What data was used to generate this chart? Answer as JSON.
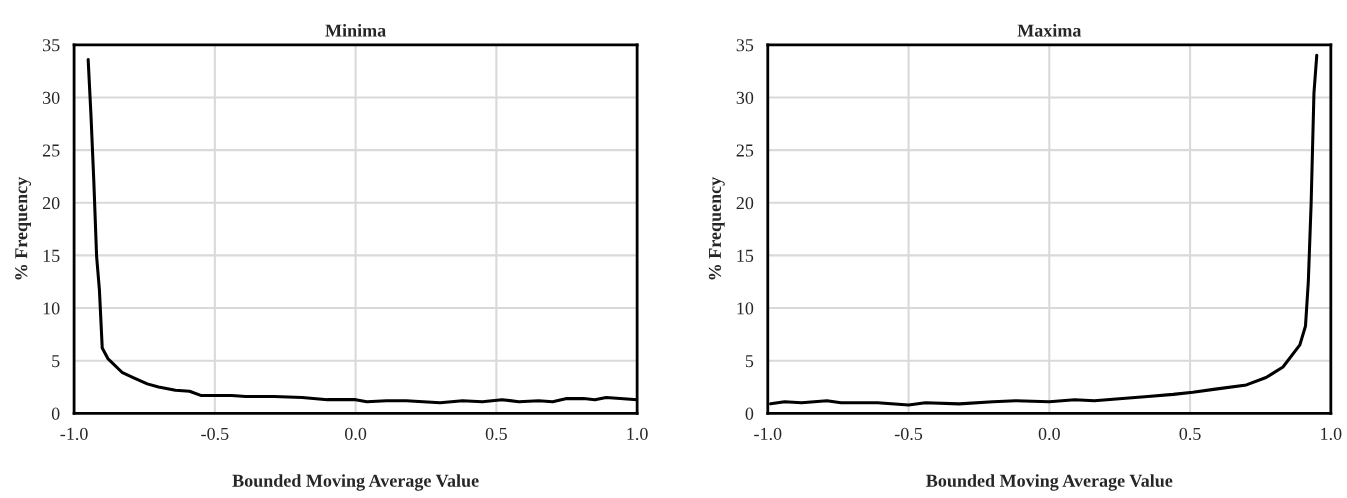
{
  "chart_data": [
    {
      "type": "line",
      "title": "Minima",
      "xlabel": "Bounded Moving Average Value",
      "ylabel": "% Frequency",
      "xlim": [
        -1.0,
        1.0
      ],
      "ylim": [
        0,
        35
      ],
      "xticks": [
        {
          "value": -1,
          "label": "-1.0"
        },
        {
          "value": -0.5,
          "label": "-0.5"
        },
        {
          "value": 0,
          "label": "0.0"
        },
        {
          "value": 0.5,
          "label": "0.5"
        },
        {
          "value": 1,
          "label": "1.0"
        }
      ],
      "yticks": [
        0,
        5,
        10,
        15,
        20,
        25,
        30,
        35
      ],
      "grid": true,
      "legend": false,
      "x": [
        -0.95,
        -0.94,
        -0.93,
        -0.92,
        -0.91,
        -0.9,
        -0.88,
        -0.83,
        -0.79,
        -0.74,
        -0.7,
        -0.64,
        -0.59,
        -0.55,
        -0.5,
        -0.44,
        -0.39,
        -0.29,
        -0.19,
        -0.1,
        0.0,
        0.04,
        0.11,
        0.18,
        0.3,
        0.38,
        0.45,
        0.52,
        0.58,
        0.65,
        0.7,
        0.75,
        0.81,
        0.85,
        0.89,
        0.94,
        1.0
      ],
      "series": [
        {
          "color": "#000000",
          "values": [
            33.6,
            28.3,
            22.1,
            14.9,
            11.7,
            6.2,
            5.2,
            3.9,
            3.4,
            2.8,
            2.5,
            2.2,
            2.1,
            1.7,
            1.7,
            1.7,
            1.6,
            1.6,
            1.5,
            1.3,
            1.3,
            1.1,
            1.2,
            1.2,
            1.0,
            1.2,
            1.1,
            1.3,
            1.1,
            1.2,
            1.1,
            1.4,
            1.4,
            1.3,
            1.5,
            1.4,
            1.3
          ]
        }
      ]
    },
    {
      "type": "line",
      "title": "Maxima",
      "xlabel": "Bounded Moving Average Value",
      "ylabel": "% Frequency",
      "xlim": [
        -1.0,
        1.0
      ],
      "ylim": [
        0,
        35
      ],
      "xticks": [
        {
          "value": -1,
          "label": "-1.0"
        },
        {
          "value": -0.5,
          "label": "-0.5"
        },
        {
          "value": 0,
          "label": "0.0"
        },
        {
          "value": 0.5,
          "label": "0.5"
        },
        {
          "value": 1,
          "label": "1.0"
        }
      ],
      "yticks": [
        0,
        5,
        10,
        15,
        20,
        25,
        30,
        35
      ],
      "grid": true,
      "legend": false,
      "x": [
        -0.99,
        -0.94,
        -0.88,
        -0.79,
        -0.74,
        -0.61,
        -0.5,
        -0.44,
        -0.32,
        -0.2,
        -0.12,
        0.0,
        0.09,
        0.16,
        0.26,
        0.35,
        0.44,
        0.51,
        0.59,
        0.7,
        0.77,
        0.83,
        0.89,
        0.91,
        0.92,
        0.93,
        0.94,
        0.95
      ],
      "series": [
        {
          "color": "#000000",
          "values": [
            0.9,
            1.1,
            1.0,
            1.2,
            1.0,
            1.0,
            0.8,
            1.0,
            0.9,
            1.1,
            1.2,
            1.1,
            1.3,
            1.2,
            1.4,
            1.6,
            1.8,
            2.0,
            2.3,
            2.7,
            3.4,
            4.4,
            6.5,
            8.3,
            12.5,
            19.9,
            30.4,
            34
          ]
        }
      ]
    }
  ]
}
